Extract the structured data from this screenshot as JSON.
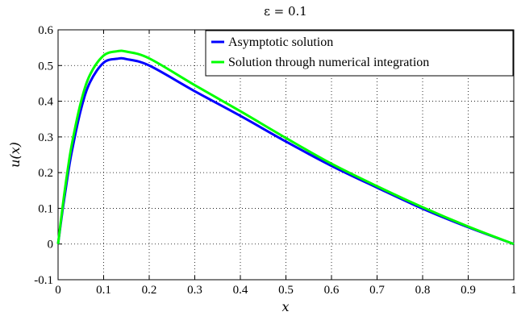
{
  "chart_data": {
    "type": "line",
    "title": "ε = 0.1",
    "xlabel": "x",
    "ylabel": "u(x)",
    "xlim": [
      0,
      1
    ],
    "ylim": [
      -0.1,
      0.6
    ],
    "grid": true,
    "legend_position": "top-right",
    "x_ticks": [
      "0",
      "0.1",
      "0.2",
      "0.3",
      "0.4",
      "0.5",
      "0.6",
      "0.7",
      "0.8",
      "0.9",
      "1"
    ],
    "y_ticks": [
      "-0.1",
      "0",
      "0.1",
      "0.2",
      "0.3",
      "0.4",
      "0.5",
      "0.6"
    ],
    "x": [
      0,
      0.01,
      0.02,
      0.03,
      0.05,
      0.07,
      0.1,
      0.13,
      0.15,
      0.2,
      0.3,
      0.4,
      0.5,
      0.6,
      0.7,
      0.8,
      0.9,
      1.0
    ],
    "series": [
      {
        "name": "Asymptotic solution",
        "color": "#0000ff",
        "values": [
          0,
          0.096,
          0.182,
          0.258,
          0.376,
          0.453,
          0.508,
          0.519,
          0.518,
          0.5,
          0.428,
          0.359,
          0.287,
          0.219,
          0.158,
          0.099,
          0.047,
          0.0
        ]
      },
      {
        "name": "Solution through numerical integration",
        "color": "#00ff00",
        "values": [
          0,
          0.105,
          0.198,
          0.278,
          0.397,
          0.474,
          0.528,
          0.54,
          0.539,
          0.52,
          0.445,
          0.372,
          0.297,
          0.225,
          0.162,
          0.103,
          0.049,
          0.0
        ]
      }
    ]
  }
}
